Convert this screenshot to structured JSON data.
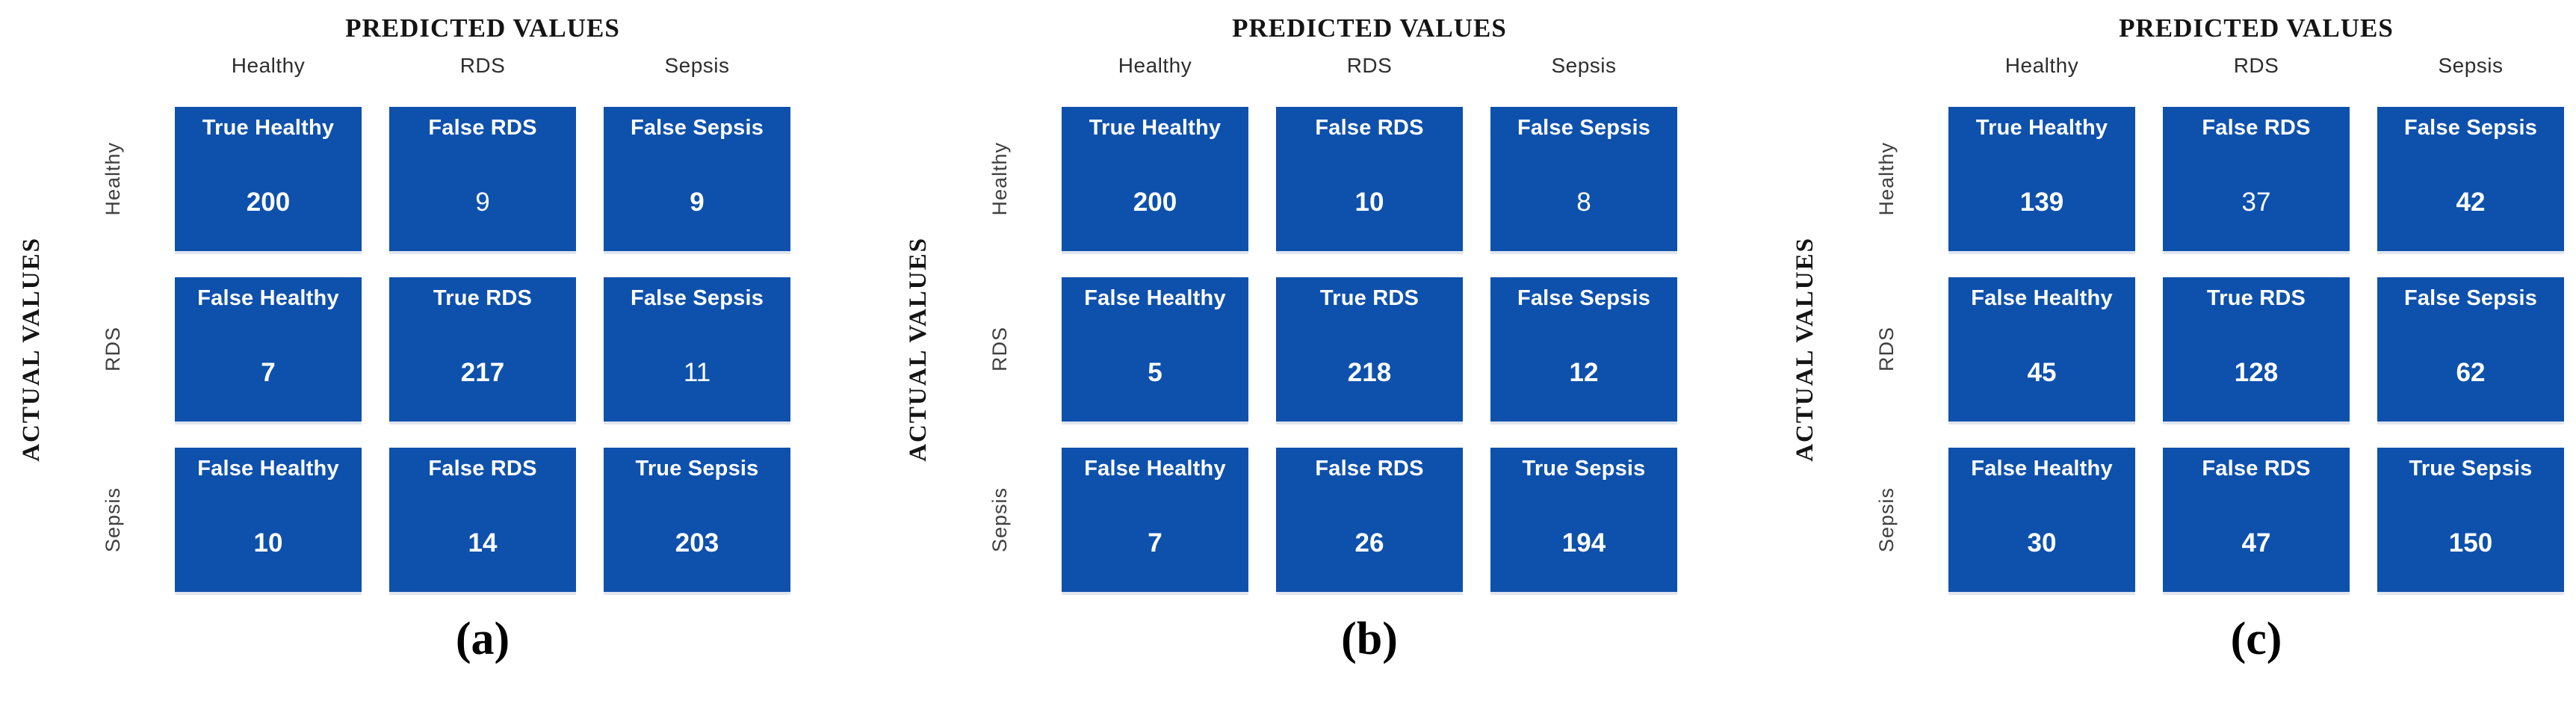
{
  "figure": {
    "colors": {
      "cell_blue": "#0e51ac",
      "cell_text": "#ffffff",
      "title_text": "#141414",
      "axis_label_text": "#3f3f3f"
    },
    "panels": [
      {
        "caption": "(a)",
        "predicted_title": "PREDICTED VALUES",
        "actual_title": "ACTUAL VALUES",
        "col_headers": [
          "Healthy",
          "RDS",
          "Sepsis"
        ],
        "row_headers": [
          "Healthy",
          "RDS",
          "Sepsis"
        ],
        "cells": [
          [
            {
              "label": "True Healthy",
              "value": "200",
              "weight": "bold"
            },
            {
              "label": "False RDS",
              "value": "9",
              "weight": "regular"
            },
            {
              "label": "False Sepsis",
              "value": "9",
              "weight": "bold"
            }
          ],
          [
            {
              "label": "False Healthy",
              "value": "7",
              "weight": "bold"
            },
            {
              "label": "True RDS",
              "value": "217",
              "weight": "bold"
            },
            {
              "label": "False Sepsis",
              "value": "11",
              "weight": "regular"
            }
          ],
          [
            {
              "label": "False Healthy",
              "value": "10",
              "weight": "bold"
            },
            {
              "label": "False RDS",
              "value": "14",
              "weight": "bold"
            },
            {
              "label": "True Sepsis",
              "value": "203",
              "weight": "bold"
            }
          ]
        ]
      },
      {
        "caption": "(b)",
        "predicted_title": "PREDICTED VALUES",
        "actual_title": "ACTUAL VALUES",
        "col_headers": [
          "Healthy",
          "RDS",
          "Sepsis"
        ],
        "row_headers": [
          "Healthy",
          "RDS",
          "Sepsis"
        ],
        "cells": [
          [
            {
              "label": "True Healthy",
              "value": "200",
              "weight": "bold"
            },
            {
              "label": "False RDS",
              "value": "10",
              "weight": "bold"
            },
            {
              "label": "False Sepsis",
              "value": "8",
              "weight": "regular"
            }
          ],
          [
            {
              "label": "False Healthy",
              "value": "5",
              "weight": "bold"
            },
            {
              "label": "True RDS",
              "value": "218",
              "weight": "bold"
            },
            {
              "label": "False Sepsis",
              "value": "12",
              "weight": "bold"
            }
          ],
          [
            {
              "label": "False Healthy",
              "value": "7",
              "weight": "bold"
            },
            {
              "label": "False RDS",
              "value": "26",
              "weight": "bold"
            },
            {
              "label": "True Sepsis",
              "value": "194",
              "weight": "bold"
            }
          ]
        ]
      },
      {
        "caption": "(c)",
        "predicted_title": "PREDICTED VALUES",
        "actual_title": "ACTUAL VALUES",
        "col_headers": [
          "Healthy",
          "RDS",
          "Sepsis"
        ],
        "row_headers": [
          "Healthy",
          "RDS",
          "Sepsis"
        ],
        "cells": [
          [
            {
              "label": "True Healthy",
              "value": "139",
              "weight": "bold"
            },
            {
              "label": "False RDS",
              "value": "37",
              "weight": "regular"
            },
            {
              "label": "False Sepsis",
              "value": "42",
              "weight": "bold"
            }
          ],
          [
            {
              "label": "False Healthy",
              "value": "45",
              "weight": "bold"
            },
            {
              "label": "True RDS",
              "value": "128",
              "weight": "bold"
            },
            {
              "label": "False Sepsis",
              "value": "62",
              "weight": "bold"
            }
          ],
          [
            {
              "label": "False Healthy",
              "value": "30",
              "weight": "bold"
            },
            {
              "label": "False RDS",
              "value": "47",
              "weight": "bold"
            },
            {
              "label": "True Sepsis",
              "value": "150",
              "weight": "bold"
            }
          ]
        ]
      }
    ]
  },
  "chart_data": [
    {
      "type": "heatmap",
      "title": "(a)",
      "xlabel": "PREDICTED VALUES",
      "ylabel": "ACTUAL VALUES",
      "x_categories": [
        "Healthy",
        "RDS",
        "Sepsis"
      ],
      "y_categories": [
        "Healthy",
        "RDS",
        "Sepsis"
      ],
      "values": [
        [
          200,
          9,
          9
        ],
        [
          7,
          217,
          11
        ],
        [
          10,
          14,
          203
        ]
      ],
      "cell_labels": [
        [
          "True Healthy",
          "False RDS",
          "False Sepsis"
        ],
        [
          "False Healthy",
          "True RDS",
          "False Sepsis"
        ],
        [
          "False Healthy",
          "False RDS",
          "True Sepsis"
        ]
      ],
      "legend_position": "none",
      "grid": false
    },
    {
      "type": "heatmap",
      "title": "(b)",
      "xlabel": "PREDICTED VALUES",
      "ylabel": "ACTUAL VALUES",
      "x_categories": [
        "Healthy",
        "RDS",
        "Sepsis"
      ],
      "y_categories": [
        "Healthy",
        "RDS",
        "Sepsis"
      ],
      "values": [
        [
          200,
          10,
          8
        ],
        [
          5,
          218,
          12
        ],
        [
          7,
          26,
          194
        ]
      ],
      "cell_labels": [
        [
          "True Healthy",
          "False RDS",
          "False Sepsis"
        ],
        [
          "False Healthy",
          "True RDS",
          "False Sepsis"
        ],
        [
          "False Healthy",
          "False RDS",
          "True Sepsis"
        ]
      ],
      "legend_position": "none",
      "grid": false
    },
    {
      "type": "heatmap",
      "title": "(c)",
      "xlabel": "PREDICTED VALUES",
      "ylabel": "ACTUAL VALUES",
      "x_categories": [
        "Healthy",
        "RDS",
        "Sepsis"
      ],
      "y_categories": [
        "Healthy",
        "RDS",
        "Sepsis"
      ],
      "values": [
        [
          139,
          37,
          42
        ],
        [
          45,
          128,
          62
        ],
        [
          30,
          47,
          150
        ]
      ],
      "cell_labels": [
        [
          "True Healthy",
          "False RDS",
          "False Sepsis"
        ],
        [
          "False Healthy",
          "True RDS",
          "False Sepsis"
        ],
        [
          "False Healthy",
          "False RDS",
          "True Sepsis"
        ]
      ],
      "legend_position": "none",
      "grid": false
    }
  ]
}
